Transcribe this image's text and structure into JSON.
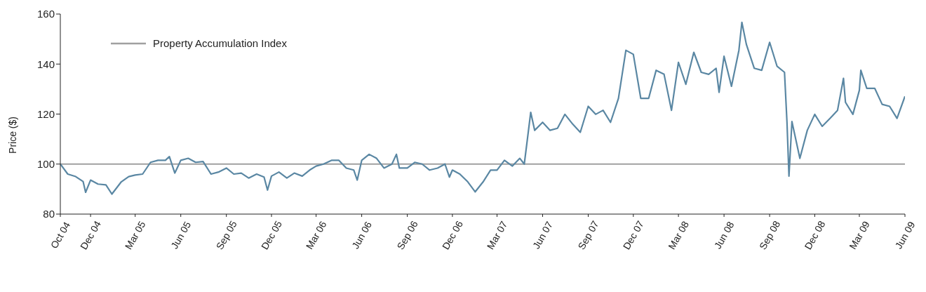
{
  "chart_data": {
    "type": "line",
    "ylabel": "Price ($)",
    "xlim": [
      "2004-10-01",
      "2009-06-01"
    ],
    "ylim": [
      80,
      160
    ],
    "yticks": [
      80,
      100,
      120,
      140,
      160
    ],
    "xticks": [
      {
        "value": "2004-10-01",
        "label": "Oct 04"
      },
      {
        "value": "2004-12-01",
        "label": "Dec 04"
      },
      {
        "value": "2005-03-01",
        "label": "Mar 05"
      },
      {
        "value": "2005-06-01",
        "label": "Jun 05"
      },
      {
        "value": "2005-09-01",
        "label": "Sep 05"
      },
      {
        "value": "2005-12-01",
        "label": "Dec 05"
      },
      {
        "value": "2006-03-01",
        "label": "Mar 06"
      },
      {
        "value": "2006-06-01",
        "label": "Jun 06"
      },
      {
        "value": "2006-09-01",
        "label": "Sep 06"
      },
      {
        "value": "2006-12-01",
        "label": "Dec 06"
      },
      {
        "value": "2007-03-01",
        "label": "Mar 07"
      },
      {
        "value": "2007-06-01",
        "label": "Jun 07"
      },
      {
        "value": "2007-09-01",
        "label": "Sep 07"
      },
      {
        "value": "2007-12-01",
        "label": "Dec 07"
      },
      {
        "value": "2008-03-01",
        "label": "Mar 08"
      },
      {
        "value": "2008-06-01",
        "label": "Jun 08"
      },
      {
        "value": "2008-09-01",
        "label": "Sep 08"
      },
      {
        "value": "2008-12-01",
        "label": "Dec 08"
      },
      {
        "value": "2009-03-01",
        "label": "Mar 09"
      },
      {
        "value": "2009-06-01",
        "label": "Jun 09"
      }
    ],
    "grid": false,
    "legend": "top left",
    "marker": "none",
    "line_style": "solid",
    "series": [
      {
        "name": "Property Accumulation Index",
        "color": "#a0a0a0",
        "x": [
          "2004-10-01",
          "2009-06-01"
        ],
        "values": [
          100,
          100
        ]
      },
      {
        "color": "#5a87a3",
        "x": [
          "2004-10-01",
          "2004-10-16",
          "2004-11-01",
          "2004-11-16",
          "2004-11-21",
          "2004-12-01",
          "2004-12-16",
          "2005-01-01",
          "2005-01-13",
          "2005-02-01",
          "2005-02-16",
          "2005-03-01",
          "2005-03-16",
          "2005-04-01",
          "2005-04-16",
          "2005-05-01",
          "2005-05-09",
          "2005-05-20",
          "2005-06-01",
          "2005-06-16",
          "2005-07-01",
          "2005-07-16",
          "2005-08-01",
          "2005-08-16",
          "2005-09-01",
          "2005-09-16",
          "2005-10-01",
          "2005-10-16",
          "2005-11-01",
          "2005-11-16",
          "2005-11-23",
          "2005-12-01",
          "2005-12-16",
          "2006-01-01",
          "2006-01-16",
          "2006-02-01",
          "2006-02-16",
          "2006-03-01",
          "2006-03-16",
          "2006-04-01",
          "2006-04-16",
          "2006-05-01",
          "2006-05-16",
          "2006-05-23",
          "2006-06-01",
          "2006-06-16",
          "2006-07-01",
          "2006-07-16",
          "2006-08-01",
          "2006-08-10",
          "2006-08-16",
          "2006-09-01",
          "2006-09-16",
          "2006-10-01",
          "2006-10-16",
          "2006-11-01",
          "2006-11-16",
          "2006-11-25",
          "2006-12-01",
          "2006-12-16",
          "2007-01-01",
          "2007-01-16",
          "2007-02-01",
          "2007-02-16",
          "2007-03-01",
          "2007-03-16",
          "2007-04-01",
          "2007-04-16",
          "2007-04-25",
          "2007-05-01",
          "2007-05-08",
          "2007-05-16",
          "2007-06-01",
          "2007-06-16",
          "2007-07-01",
          "2007-07-16",
          "2007-08-01",
          "2007-08-16",
          "2007-09-01",
          "2007-09-16",
          "2007-10-01",
          "2007-10-16",
          "2007-11-01",
          "2007-11-16",
          "2007-12-01",
          "2007-12-16",
          "2008-01-01",
          "2008-01-16",
          "2008-02-01",
          "2008-02-16",
          "2008-03-01",
          "2008-03-16",
          "2008-04-01",
          "2008-04-16",
          "2008-05-01",
          "2008-05-16",
          "2008-05-22",
          "2008-06-01",
          "2008-06-16",
          "2008-07-01",
          "2008-07-07",
          "2008-07-16",
          "2008-08-01",
          "2008-08-16",
          "2008-09-01",
          "2008-09-16",
          "2008-10-01",
          "2008-10-06",
          "2008-10-10",
          "2008-10-16",
          "2008-11-01",
          "2008-11-16",
          "2008-12-01",
          "2008-12-16",
          "2009-01-01",
          "2009-01-16",
          "2009-01-28",
          "2009-02-01",
          "2009-02-16",
          "2009-03-01",
          "2009-03-04",
          "2009-03-16",
          "2009-04-01",
          "2009-04-16",
          "2009-05-01",
          "2009-05-16",
          "2009-06-01"
        ],
        "values": [
          100,
          96,
          95,
          93,
          88.7,
          93.6,
          92,
          91.7,
          88,
          92.9,
          95,
          95.6,
          96,
          100.7,
          101.5,
          101.5,
          103,
          96.4,
          101.5,
          102.3,
          100.7,
          101,
          96,
          96.8,
          98.4,
          96,
          96.4,
          94.4,
          96,
          94.8,
          89.6,
          95.2,
          96.8,
          94.4,
          96.4,
          95.2,
          97.6,
          99.2,
          100,
          101.5,
          101.5,
          98.4,
          97.6,
          93.6,
          101.5,
          103.9,
          102.3,
          98.4,
          100,
          103.9,
          98.4,
          98.4,
          100.7,
          100,
          97.6,
          98.4,
          100,
          94.8,
          97.6,
          96,
          92.9,
          88.9,
          92.9,
          97.6,
          97.6,
          101.5,
          99.2,
          102.3,
          100,
          109.5,
          120.7,
          113.5,
          116.7,
          113.5,
          114.3,
          119.9,
          115.9,
          112.7,
          123.1,
          119.9,
          121.5,
          116.7,
          126.3,
          145.5,
          143.9,
          126.3,
          126.3,
          137.5,
          135.9,
          121.5,
          140.7,
          131.9,
          144.7,
          136.7,
          135.9,
          138.3,
          128.7,
          143.1,
          131.1,
          145.5,
          156.7,
          147.9,
          138.3,
          137.5,
          148.7,
          139.1,
          136.7,
          116.7,
          95.2,
          117,
          102.3,
          113.5,
          119.9,
          115.1,
          118.3,
          121.5,
          134.3,
          124.7,
          119.9,
          129.5,
          137.5,
          130.3,
          130.3,
          123.9,
          123.1,
          118.3,
          127.1
        ]
      }
    ]
  }
}
